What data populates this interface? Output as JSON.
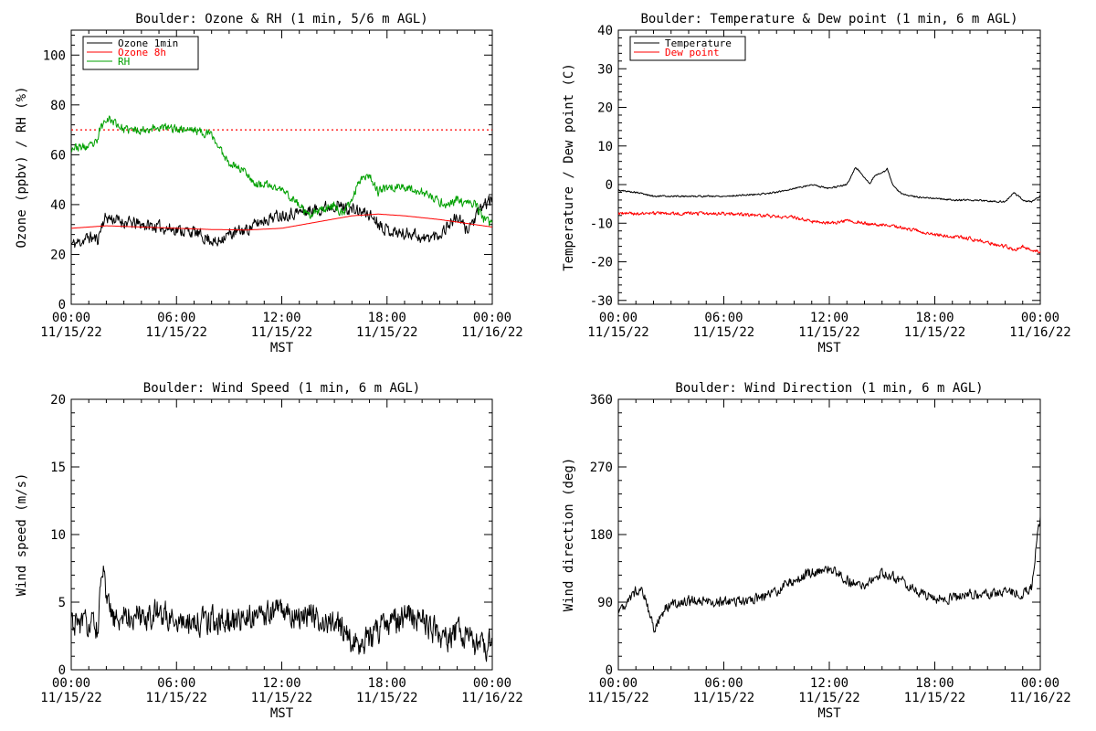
{
  "colors": {
    "black": "#000000",
    "red": "#ff0000",
    "green": "#00a000"
  },
  "chart_data": [
    {
      "id": "ozone",
      "type": "line",
      "title": "Boulder: Ozone & RH (1 min, 5/6 m AGL)",
      "xlabel": "MST",
      "ylabel": "Ozone (ppbv) / RH (%)",
      "xlim_hours": [
        0,
        24
      ],
      "ylim": [
        0,
        110
      ],
      "yticks": [
        0,
        20,
        40,
        60,
        80,
        100
      ],
      "xticks": [
        {
          "hour": 0,
          "time": "00:00",
          "date": "11/15/22"
        },
        {
          "hour": 6,
          "time": "06:00",
          "date": "11/15/22"
        },
        {
          "hour": 12,
          "time": "12:00",
          "date": "11/15/22"
        },
        {
          "hour": 18,
          "time": "18:00",
          "date": "11/15/22"
        },
        {
          "hour": 24,
          "time": "00:00",
          "date": "11/16/22"
        }
      ],
      "legend_position": "top-left",
      "reference_line": {
        "y": 70,
        "color": "#ff0000",
        "style": "dotted"
      },
      "series": [
        {
          "name": "Ozone 1min",
          "color": "#000000",
          "noise": 2.2,
          "seed": 11,
          "points": [
            [
              0,
              24
            ],
            [
              0.5,
              25
            ],
            [
              1.0,
              27
            ],
            [
              1.5,
              26
            ],
            [
              1.8,
              33
            ],
            [
              2.0,
              35
            ],
            [
              3,
              33
            ],
            [
              4,
              32
            ],
            [
              5,
              31
            ],
            [
              6,
              30
            ],
            [
              7,
              29
            ],
            [
              7.5,
              27
            ],
            [
              8.0,
              26
            ],
            [
              8.3,
              24
            ],
            [
              8.6,
              27
            ],
            [
              9,
              28
            ],
            [
              10,
              30
            ],
            [
              11,
              34
            ],
            [
              12,
              36
            ],
            [
              13,
              37
            ],
            [
              14,
              38
            ],
            [
              15,
              40
            ],
            [
              16,
              38
            ],
            [
              17,
              36
            ],
            [
              17.5,
              33
            ],
            [
              18,
              30
            ],
            [
              18.5,
              29
            ],
            [
              19,
              28
            ],
            [
              19.5,
              29
            ],
            [
              20,
              26
            ],
            [
              20.5,
              27
            ],
            [
              21,
              28
            ],
            [
              21.5,
              32
            ],
            [
              22,
              35
            ],
            [
              22.5,
              30
            ],
            [
              23,
              34
            ],
            [
              23.5,
              40
            ],
            [
              24,
              42
            ]
          ]
        },
        {
          "name": "Ozone 8h",
          "color": "#ff0000",
          "noise": 0,
          "seed": 0,
          "points": [
            [
              0,
              30.5
            ],
            [
              2,
              31.5
            ],
            [
              4,
              31
            ],
            [
              6,
              30.5
            ],
            [
              8,
              30
            ],
            [
              10,
              29.8
            ],
            [
              12,
              30.5
            ],
            [
              14,
              33
            ],
            [
              16,
              35.5
            ],
            [
              17.5,
              36.2
            ],
            [
              19,
              35.5
            ],
            [
              21,
              34
            ],
            [
              23,
              32
            ],
            [
              24,
              31
            ]
          ]
        },
        {
          "name": "RH",
          "color": "#00a000",
          "noise": 1.5,
          "seed": 23,
          "points": [
            [
              0,
              63
            ],
            [
              1.0,
              63
            ],
            [
              1.5,
              65
            ],
            [
              1.6,
              70
            ],
            [
              1.8,
              72
            ],
            [
              2.0,
              75
            ],
            [
              2.5,
              73
            ],
            [
              3.0,
              70
            ],
            [
              4,
              70
            ],
            [
              5,
              71
            ],
            [
              6,
              70.5
            ],
            [
              7,
              70
            ],
            [
              8,
              68
            ],
            [
              8.5,
              62
            ],
            [
              9,
              57
            ],
            [
              10,
              53
            ],
            [
              10.5,
              48
            ],
            [
              11,
              48
            ],
            [
              12,
              46
            ],
            [
              13,
              40
            ],
            [
              13.5,
              35
            ],
            [
              14,
              37
            ],
            [
              15,
              40
            ],
            [
              15.5,
              36
            ],
            [
              16,
              42
            ],
            [
              16.5,
              51
            ],
            [
              17,
              52
            ],
            [
              17.5,
              45
            ],
            [
              18,
              47
            ],
            [
              19,
              47
            ],
            [
              20,
              45
            ],
            [
              21,
              41
            ],
            [
              21.5,
              40
            ],
            [
              22,
              42
            ],
            [
              22.5,
              40
            ],
            [
              23,
              41
            ],
            [
              23.5,
              34
            ],
            [
              24,
              32
            ]
          ]
        }
      ]
    },
    {
      "id": "temp",
      "type": "line",
      "title": "Boulder: Temperature & Dew point (1 min, 6 m AGL)",
      "xlabel": "MST",
      "ylabel": "Temperature / Dew point (C)",
      "xlim_hours": [
        0,
        24
      ],
      "ylim": [
        -31,
        40
      ],
      "yticks": [
        -30,
        -20,
        -10,
        0,
        10,
        20,
        30,
        40
      ],
      "xticks": [
        {
          "hour": 0,
          "time": "00:00",
          "date": "11/15/22"
        },
        {
          "hour": 6,
          "time": "06:00",
          "date": "11/15/22"
        },
        {
          "hour": 12,
          "time": "12:00",
          "date": "11/15/22"
        },
        {
          "hour": 18,
          "time": "18:00",
          "date": "11/15/22"
        },
        {
          "hour": 24,
          "time": "00:00",
          "date": "11/16/22"
        }
      ],
      "legend_position": "top-left",
      "series": [
        {
          "name": "Temperature",
          "color": "#000000",
          "noise": 0.2,
          "seed": 5,
          "points": [
            [
              0,
              -1.5
            ],
            [
              1,
              -2
            ],
            [
              1.5,
              -2.5
            ],
            [
              2,
              -3
            ],
            [
              4,
              -3
            ],
            [
              6,
              -3
            ],
            [
              8,
              -2.5
            ],
            [
              9,
              -2
            ],
            [
              10,
              -1
            ],
            [
              11,
              0
            ],
            [
              12,
              -1
            ],
            [
              13,
              0
            ],
            [
              13.5,
              4.5
            ],
            [
              14,
              2
            ],
            [
              14.3,
              0
            ],
            [
              14.6,
              2.5
            ],
            [
              15,
              3
            ],
            [
              15.3,
              4
            ],
            [
              15.6,
              0
            ],
            [
              16,
              -2
            ],
            [
              16.5,
              -3
            ],
            [
              17,
              -3.2
            ],
            [
              18,
              -3.5
            ],
            [
              19,
              -4
            ],
            [
              20,
              -4
            ],
            [
              21,
              -4.2
            ],
            [
              22,
              -4.5
            ],
            [
              22.5,
              -2
            ],
            [
              23,
              -4
            ],
            [
              23.5,
              -4.5
            ],
            [
              24,
              -3
            ]
          ]
        },
        {
          "name": "Dew point",
          "color": "#ff0000",
          "noise": 0.4,
          "seed": 9,
          "points": [
            [
              0,
              -7.5
            ],
            [
              2,
              -7.5
            ],
            [
              4,
              -7.5
            ],
            [
              6,
              -7.5
            ],
            [
              8,
              -8
            ],
            [
              10,
              -8.5
            ],
            [
              11,
              -9.5
            ],
            [
              12,
              -10
            ],
            [
              13,
              -9.5
            ],
            [
              14,
              -10
            ],
            [
              15,
              -10.5
            ],
            [
              16,
              -11
            ],
            [
              17,
              -12
            ],
            [
              18,
              -13
            ],
            [
              19,
              -13.5
            ],
            [
              20,
              -14
            ],
            [
              21,
              -15
            ],
            [
              22,
              -16
            ],
            [
              22.5,
              -17
            ],
            [
              23,
              -16
            ],
            [
              24,
              -17.5
            ]
          ]
        }
      ]
    },
    {
      "id": "wspd",
      "type": "line",
      "title": "Boulder: Wind Speed (1 min, 6 m AGL)",
      "xlabel": "MST",
      "ylabel": "Wind speed (m/s)",
      "xlim_hours": [
        0,
        24
      ],
      "ylim": [
        0,
        20
      ],
      "yticks": [
        0,
        5,
        10,
        15,
        20
      ],
      "xticks": [
        {
          "hour": 0,
          "time": "00:00",
          "date": "11/15/22"
        },
        {
          "hour": 6,
          "time": "06:00",
          "date": "11/15/22"
        },
        {
          "hour": 12,
          "time": "12:00",
          "date": "11/15/22"
        },
        {
          "hour": 18,
          "time": "18:00",
          "date": "11/15/22"
        },
        {
          "hour": 24,
          "time": "00:00",
          "date": "11/16/22"
        }
      ],
      "series": [
        {
          "name": "",
          "color": "#000000",
          "noise": 0.9,
          "seed": 31,
          "points": [
            [
              0,
              3.5
            ],
            [
              1,
              3.3
            ],
            [
              1.5,
              3.2
            ],
            [
              1.7,
              6
            ],
            [
              1.8,
              7.5
            ],
            [
              2,
              5
            ],
            [
              2.5,
              3.5
            ],
            [
              3,
              4
            ],
            [
              4,
              4
            ],
            [
              5,
              4.2
            ],
            [
              6,
              3.8
            ],
            [
              7,
              3.5
            ],
            [
              8,
              3.8
            ],
            [
              9,
              3.5
            ],
            [
              10,
              4
            ],
            [
              11,
              4.2
            ],
            [
              12,
              4.5
            ],
            [
              13,
              4
            ],
            [
              14,
              3.8
            ],
            [
              15,
              3.5
            ],
            [
              15.5,
              3
            ],
            [
              16,
              2
            ],
            [
              17,
              2.2
            ],
            [
              17.5,
              3
            ],
            [
              18,
              3.5
            ],
            [
              19,
              3.8
            ],
            [
              20,
              4
            ],
            [
              20.5,
              3
            ],
            [
              21,
              2.5
            ],
            [
              21.5,
              2.2
            ],
            [
              22,
              3
            ],
            [
              22.5,
              2.5
            ],
            [
              23,
              2
            ],
            [
              23.5,
              1.5
            ],
            [
              24,
              2
            ]
          ]
        }
      ]
    },
    {
      "id": "wdir",
      "type": "line",
      "title": "Boulder: Wind Direction (1 min, 6 m AGL)",
      "xlabel": "MST",
      "ylabel": "Wind direction (deg)",
      "xlim_hours": [
        0,
        24
      ],
      "ylim": [
        0,
        360
      ],
      "yticks": [
        0,
        90,
        180,
        270,
        360
      ],
      "xticks": [
        {
          "hour": 0,
          "time": "00:00",
          "date": "11/15/22"
        },
        {
          "hour": 6,
          "time": "06:00",
          "date": "11/15/22"
        },
        {
          "hour": 12,
          "time": "12:00",
          "date": "11/15/22"
        },
        {
          "hour": 18,
          "time": "18:00",
          "date": "11/15/22"
        },
        {
          "hour": 24,
          "time": "00:00",
          "date": "11/16/22"
        }
      ],
      "series": [
        {
          "name": "",
          "color": "#000000",
          "noise": 6,
          "seed": 47,
          "points": [
            [
              0,
              80
            ],
            [
              0.5,
              90
            ],
            [
              1,
              105
            ],
            [
              1.3,
              110
            ],
            [
              1.6,
              90
            ],
            [
              2,
              55
            ],
            [
              2.3,
              65
            ],
            [
              2.6,
              80
            ],
            [
              3,
              88
            ],
            [
              4,
              92
            ],
            [
              5,
              90
            ],
            [
              6,
              90
            ],
            [
              7,
              92
            ],
            [
              8,
              95
            ],
            [
              9,
              105
            ],
            [
              10,
              120
            ],
            [
              11,
              130
            ],
            [
              12,
              135
            ],
            [
              13,
              120
            ],
            [
              14,
              110
            ],
            [
              15,
              130
            ],
            [
              16,
              120
            ],
            [
              17,
              105
            ],
            [
              18,
              95
            ],
            [
              19,
              95
            ],
            [
              20,
              100
            ],
            [
              21,
              100
            ],
            [
              22,
              105
            ],
            [
              23,
              100
            ],
            [
              23.5,
              110
            ],
            [
              23.7,
              150
            ],
            [
              23.85,
              190
            ],
            [
              24,
              200
            ]
          ]
        }
      ]
    }
  ]
}
